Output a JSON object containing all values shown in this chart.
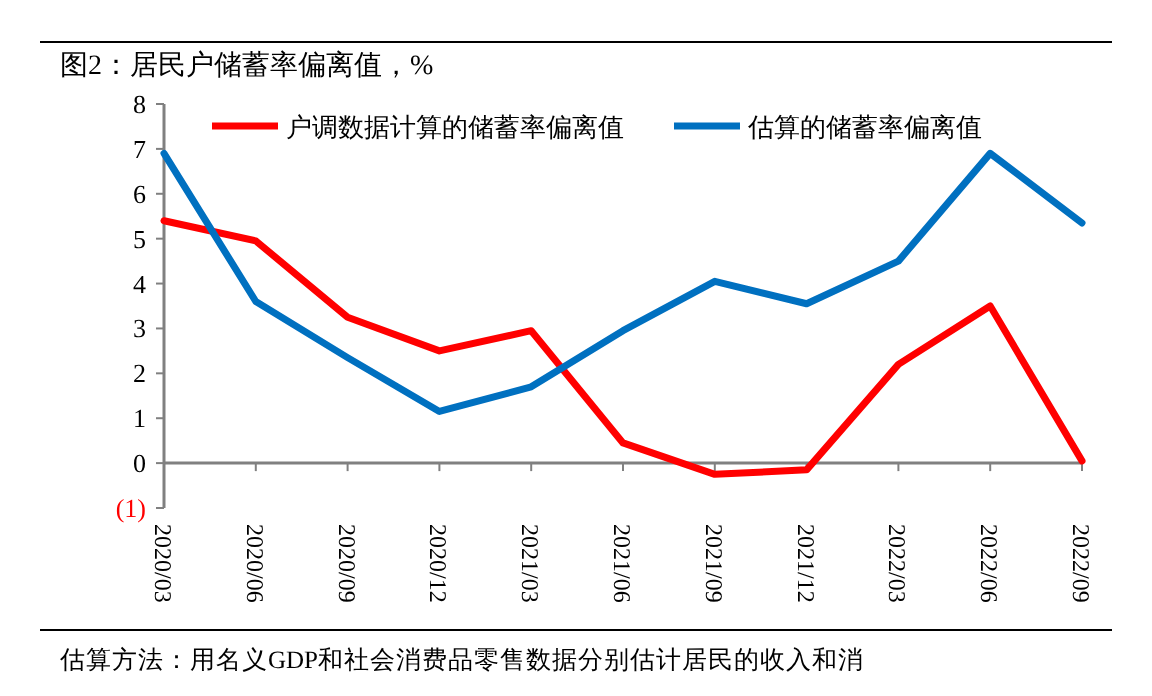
{
  "chart_data": {
    "type": "line",
    "title": "图2：居民户储蓄率偏离值，%",
    "categories": [
      "2020/03",
      "2020/06",
      "2020/09",
      "2020/12",
      "2021/03",
      "2021/06",
      "2021/09",
      "2021/12",
      "2022/03",
      "2022/06",
      "2022/09"
    ],
    "series": [
      {
        "name": "户调数据计算的储蓄率偏离值",
        "color": "#ff0000",
        "values": [
          5.4,
          4.95,
          3.25,
          2.5,
          2.95,
          0.45,
          -0.25,
          -0.15,
          2.2,
          3.5,
          0.05
        ]
      },
      {
        "name": "估算的储蓄率偏离值",
        "color": "#0070c0",
        "values": [
          6.9,
          3.6,
          2.35,
          1.15,
          1.7,
          2.95,
          4.05,
          3.55,
          4.5,
          6.9,
          5.35
        ]
      }
    ],
    "ylim": [
      -1,
      8
    ],
    "yticks": [
      {
        "value": -1,
        "label": "(1)"
      },
      0,
      1,
      2,
      3,
      4,
      5,
      6,
      7,
      8
    ],
    "grid": false,
    "legend": "top",
    "marker": "none",
    "line_style": "solid",
    "annotations": [
      "估算方法：用名义GDP和社会消费品零售数据分别估计居民的收入和消"
    ]
  }
}
